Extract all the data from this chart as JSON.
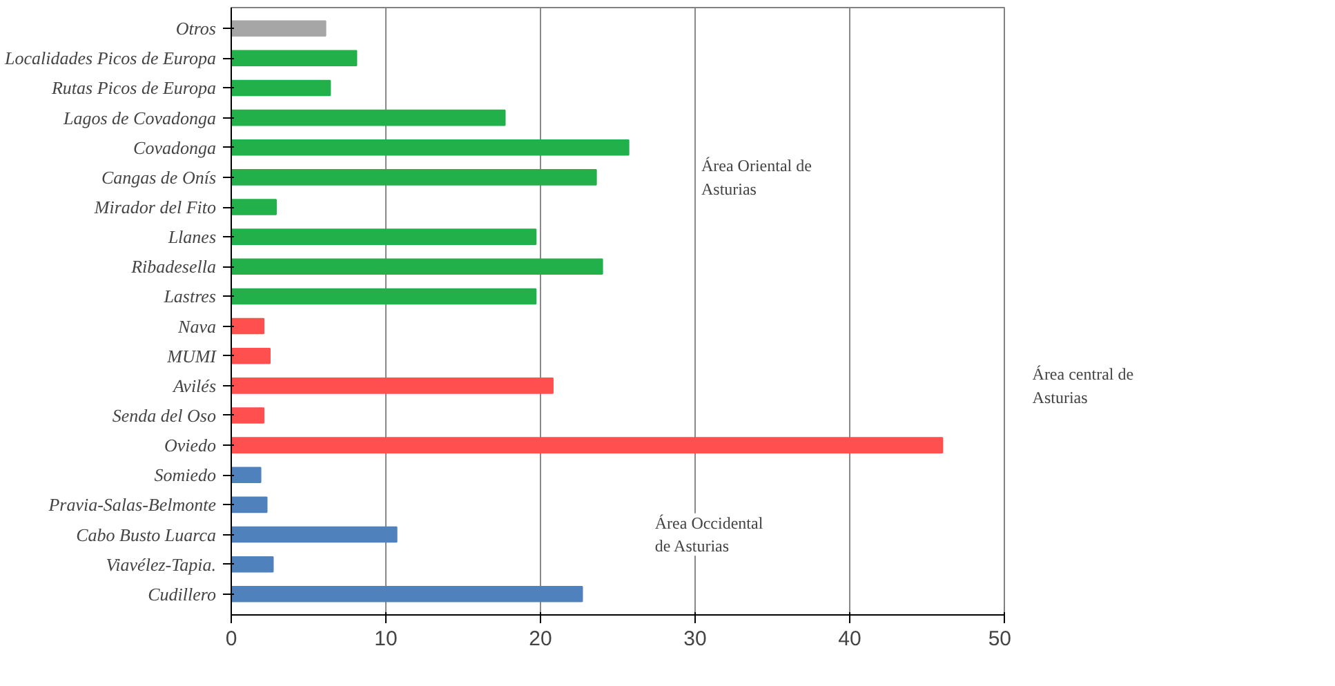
{
  "chart_data": {
    "type": "bar",
    "orientation": "horizontal",
    "categories": [
      "Otros",
      "Localidades Picos de Europa",
      "Rutas Picos de Europa",
      "Lagos de Covadonga",
      "Covadonga",
      "Cangas de Onís",
      "Mirador del Fito",
      "Llanes",
      "Ribadesella",
      "Lastres",
      "Nava",
      "MUMI",
      "Avilés",
      "Senda del Oso",
      "Oviedo",
      "Somiedo",
      "Pravia-Salas-Belmonte",
      "Cabo Busto Luarca",
      "Viavélez-Tapia.",
      "Cudillero"
    ],
    "values": [
      6.1,
      8.1,
      6.4,
      17.7,
      25.7,
      23.6,
      2.9,
      19.7,
      24.0,
      19.7,
      2.1,
      2.5,
      20.8,
      2.1,
      46.0,
      1.9,
      2.3,
      10.7,
      2.7,
      22.7
    ],
    "colors": [
      "#a6a6a6",
      "#22b04b",
      "#22b04b",
      "#22b04b",
      "#22b04b",
      "#22b04b",
      "#22b04b",
      "#22b04b",
      "#22b04b",
      "#22b04b",
      "#ff4f4f",
      "#ff4f4f",
      "#ff4f4f",
      "#ff4f4f",
      "#ff4f4f",
      "#4f81bd",
      "#4f81bd",
      "#4f81bd",
      "#4f81bd",
      "#4f81bd"
    ],
    "xlim": [
      0,
      50
    ],
    "xticks": [
      0,
      10,
      20,
      30,
      40,
      50
    ],
    "grid": "x",
    "annotations": [
      "Área Oriental de\nAsturias",
      "Área central de\nAsturias",
      "Área Occidental\nde Asturias"
    ]
  }
}
